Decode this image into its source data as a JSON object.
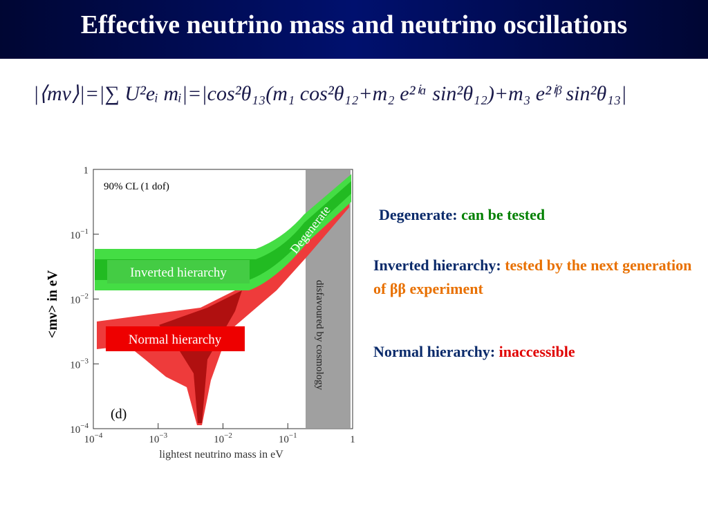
{
  "header": {
    "title": "Effective neutrino mass and neutrino oscillations"
  },
  "formula": "|⟨mν⟩|=|∑ U²eᵢ mᵢ|=|cos²θ₁₃(m₁ cos²θ₁₂+m₂ e²ⁱᵅ sin²θ₁₂)+m₃ e²ⁱᵝ sin²θ₁₃|",
  "plot": {
    "note": "90% CL (1 dof)",
    "panel": "(d)",
    "band_labels": {
      "degenerate": "Degenerate",
      "inverted": "Inverted hierarchy",
      "normal": "Normal hierarchy",
      "cosmology": "disfavoured by cosmology"
    },
    "x_label": "lightest neutrino mass in eV",
    "y_label": "<mν> in eV",
    "xticks": [
      {
        "base": "10",
        "exp": "−4"
      },
      {
        "base": "10",
        "exp": "−3"
      },
      {
        "base": "10",
        "exp": "−2"
      },
      {
        "base": "10",
        "exp": "−1"
      },
      {
        "base": "1",
        "exp": ""
      }
    ],
    "yticks": [
      {
        "base": "1",
        "exp": ""
      },
      {
        "base": "10",
        "exp": "−1"
      },
      {
        "base": "10",
        "exp": "−2"
      },
      {
        "base": "10",
        "exp": "−3"
      },
      {
        "base": "10",
        "exp": "−4"
      }
    ]
  },
  "notes": [
    {
      "label": "Degenerate:",
      "detail": "can be tested"
    },
    {
      "label": "Inverted hierarchy:",
      "detail": "tested by the next generation of ββ experiment"
    },
    {
      "label": "Normal hierarchy:",
      "detail": "inaccessible"
    }
  ]
}
